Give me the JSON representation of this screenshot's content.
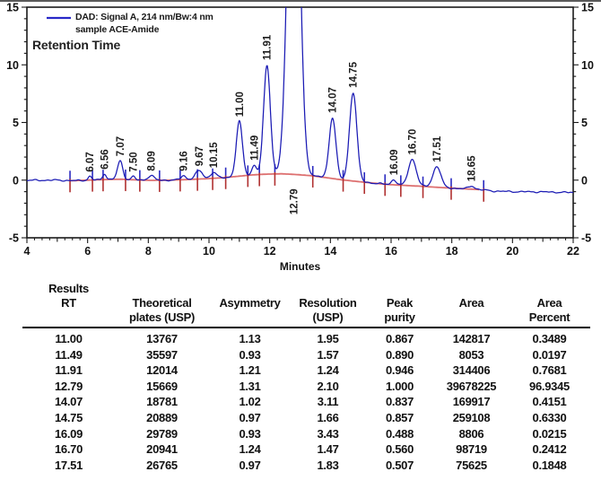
{
  "window": {
    "top_edge_color": "#5a5a5a"
  },
  "legend": {
    "line1": "DAD: Signal A, 214 nm/Bw:4 nm",
    "line2": "sample ACE-Amide",
    "swatch_color": "#2828c8",
    "retention_label": "Retention Time"
  },
  "chart_data": {
    "type": "line",
    "title": "",
    "xlabel": "Minutes",
    "ylabel": "",
    "x_range": [
      4,
      22
    ],
    "y_range": [
      -5,
      15
    ],
    "x_ticks": [
      4,
      6,
      8,
      10,
      12,
      14,
      16,
      18,
      20,
      22
    ],
    "y_ticks": [
      -5,
      0,
      5,
      10,
      15
    ],
    "grid": false,
    "legend_position": "top-left",
    "trace_color": "#1a1ab4",
    "baseline_color": "#dd7070",
    "mark_color_red": "#b03030",
    "mark_color_blue": "#2a2ac0",
    "axis_color": "#1a1a1a",
    "peaks": [
      {
        "label": "6.07",
        "rt": 6.07,
        "height": 0.32,
        "sigma": 0.055
      },
      {
        "label": "6.56",
        "rt": 6.56,
        "height": 0.5,
        "sigma": 0.06
      },
      {
        "label": "7.07",
        "rt": 7.07,
        "height": 1.6,
        "sigma": 0.085
      },
      {
        "label": "7.50",
        "rt": 7.5,
        "height": 0.28,
        "sigma": 0.06
      },
      {
        "label": "8.09",
        "rt": 8.09,
        "height": 0.42,
        "sigma": 0.1
      },
      {
        "label": "9.16",
        "rt": 9.16,
        "height": 0.35,
        "sigma": 0.08
      },
      {
        "label": "9.67",
        "rt": 9.67,
        "height": 0.72,
        "sigma": 0.12
      },
      {
        "label": "10.15",
        "rt": 10.15,
        "height": 0.5,
        "sigma": 0.1
      },
      {
        "label": "11.00",
        "rt": 11.0,
        "height": 4.75,
        "sigma": 0.1
      },
      {
        "label": "11.49",
        "rt": 11.49,
        "height": 0.85,
        "sigma": 0.07
      },
      {
        "label": "11.91",
        "rt": 11.91,
        "height": 9.5,
        "sigma": 0.11
      },
      {
        "label": "12.79",
        "rt": 12.79,
        "height": 40.0,
        "sigma": 0.18,
        "label_below": true
      },
      {
        "label": "14.07",
        "rt": 14.07,
        "height": 5.3,
        "sigma": 0.11
      },
      {
        "label": "14.75",
        "rt": 14.75,
        "height": 7.7,
        "sigma": 0.12
      },
      {
        "label": "16.09",
        "rt": 16.09,
        "height": 0.45,
        "sigma": 0.08
      },
      {
        "label": "16.70",
        "rt": 16.7,
        "height": 2.3,
        "sigma": 0.13
      },
      {
        "label": "17.51",
        "rt": 17.51,
        "height": 1.8,
        "sigma": 0.13
      },
      {
        "label": "18.65",
        "rt": 18.65,
        "height": 0.28,
        "sigma": 0.1
      }
    ],
    "baseline_points": [
      [
        4,
        -0.02
      ],
      [
        5,
        0.0
      ],
      [
        5.5,
        -0.05
      ],
      [
        6,
        0.0
      ],
      [
        6.6,
        0.05
      ],
      [
        7.1,
        0.08
      ],
      [
        7.6,
        0.02
      ],
      [
        8.1,
        -0.02
      ],
      [
        8.7,
        0.0
      ],
      [
        9.3,
        0.05
      ],
      [
        9.9,
        0.12
      ],
      [
        10.4,
        0.2
      ],
      [
        10.9,
        0.32
      ],
      [
        11.4,
        0.45
      ],
      [
        11.9,
        0.52
      ],
      [
        12.4,
        0.55
      ],
      [
        12.9,
        0.48
      ],
      [
        13.4,
        0.38
      ],
      [
        13.9,
        0.2
      ],
      [
        14.4,
        0.02
      ],
      [
        14.9,
        -0.12
      ],
      [
        15.4,
        -0.25
      ],
      [
        15.9,
        -0.38
      ],
      [
        16.4,
        -0.45
      ],
      [
        16.9,
        -0.52
      ],
      [
        17.4,
        -0.6
      ],
      [
        17.9,
        -0.68
      ],
      [
        18.4,
        -0.75
      ],
      [
        18.9,
        -0.82
      ],
      [
        19.4,
        -0.95
      ],
      [
        20,
        -1.0
      ],
      [
        21,
        -1.02
      ],
      [
        22,
        -1.08
      ]
    ],
    "baseline_span": [
      5.45,
      18.95
    ],
    "integration_marks": [
      5.42,
      6.16,
      6.51,
      7.25,
      7.72,
      8.37,
      9.05,
      9.62,
      10.12,
      10.55,
      11.28,
      11.66,
      12.17,
      13.42,
      14.42,
      15.12,
      15.8,
      16.32,
      17.05,
      17.98,
      19.05
    ]
  },
  "results_table": {
    "columns": [
      {
        "top": "Results",
        "mid": "RT",
        "bot": ""
      },
      {
        "top": "",
        "mid": "Theoretical",
        "bot": "plates (USP)"
      },
      {
        "top": "",
        "mid": "Asymmetry",
        "bot": ""
      },
      {
        "top": "",
        "mid": "Resolution",
        "bot": "(USP)"
      },
      {
        "top": "",
        "mid": "Peak",
        "bot": "purity"
      },
      {
        "top": "",
        "mid": "Area",
        "bot": ""
      },
      {
        "top": "",
        "mid": "Area",
        "bot": "Percent"
      }
    ],
    "rows": [
      [
        "11.00",
        "13767",
        "1.13",
        "1.95",
        "0.867",
        "142817",
        "0.3489"
      ],
      [
        "11.49",
        "35597",
        "0.93",
        "1.57",
        "0.890",
        "8053",
        "0.0197"
      ],
      [
        "11.91",
        "12014",
        "1.21",
        "1.24",
        "0.946",
        "314406",
        "0.7681"
      ],
      [
        "12.79",
        "15669",
        "1.31",
        "2.10",
        "1.000",
        "39678225",
        "96.9345"
      ],
      [
        "14.07",
        "18781",
        "1.02",
        "3.11",
        "0.837",
        "169917",
        "0.4151"
      ],
      [
        "14.75",
        "20889",
        "0.97",
        "1.66",
        "0.857",
        "259108",
        "0.6330"
      ],
      [
        "16.09",
        "29789",
        "0.93",
        "3.43",
        "0.488",
        "8806",
        "0.0215"
      ],
      [
        "16.70",
        "20941",
        "1.24",
        "1.47",
        "0.560",
        "98719",
        "0.2412"
      ],
      [
        "17.51",
        "26765",
        "0.97",
        "1.83",
        "0.507",
        "75625",
        "0.1848"
      ]
    ]
  }
}
